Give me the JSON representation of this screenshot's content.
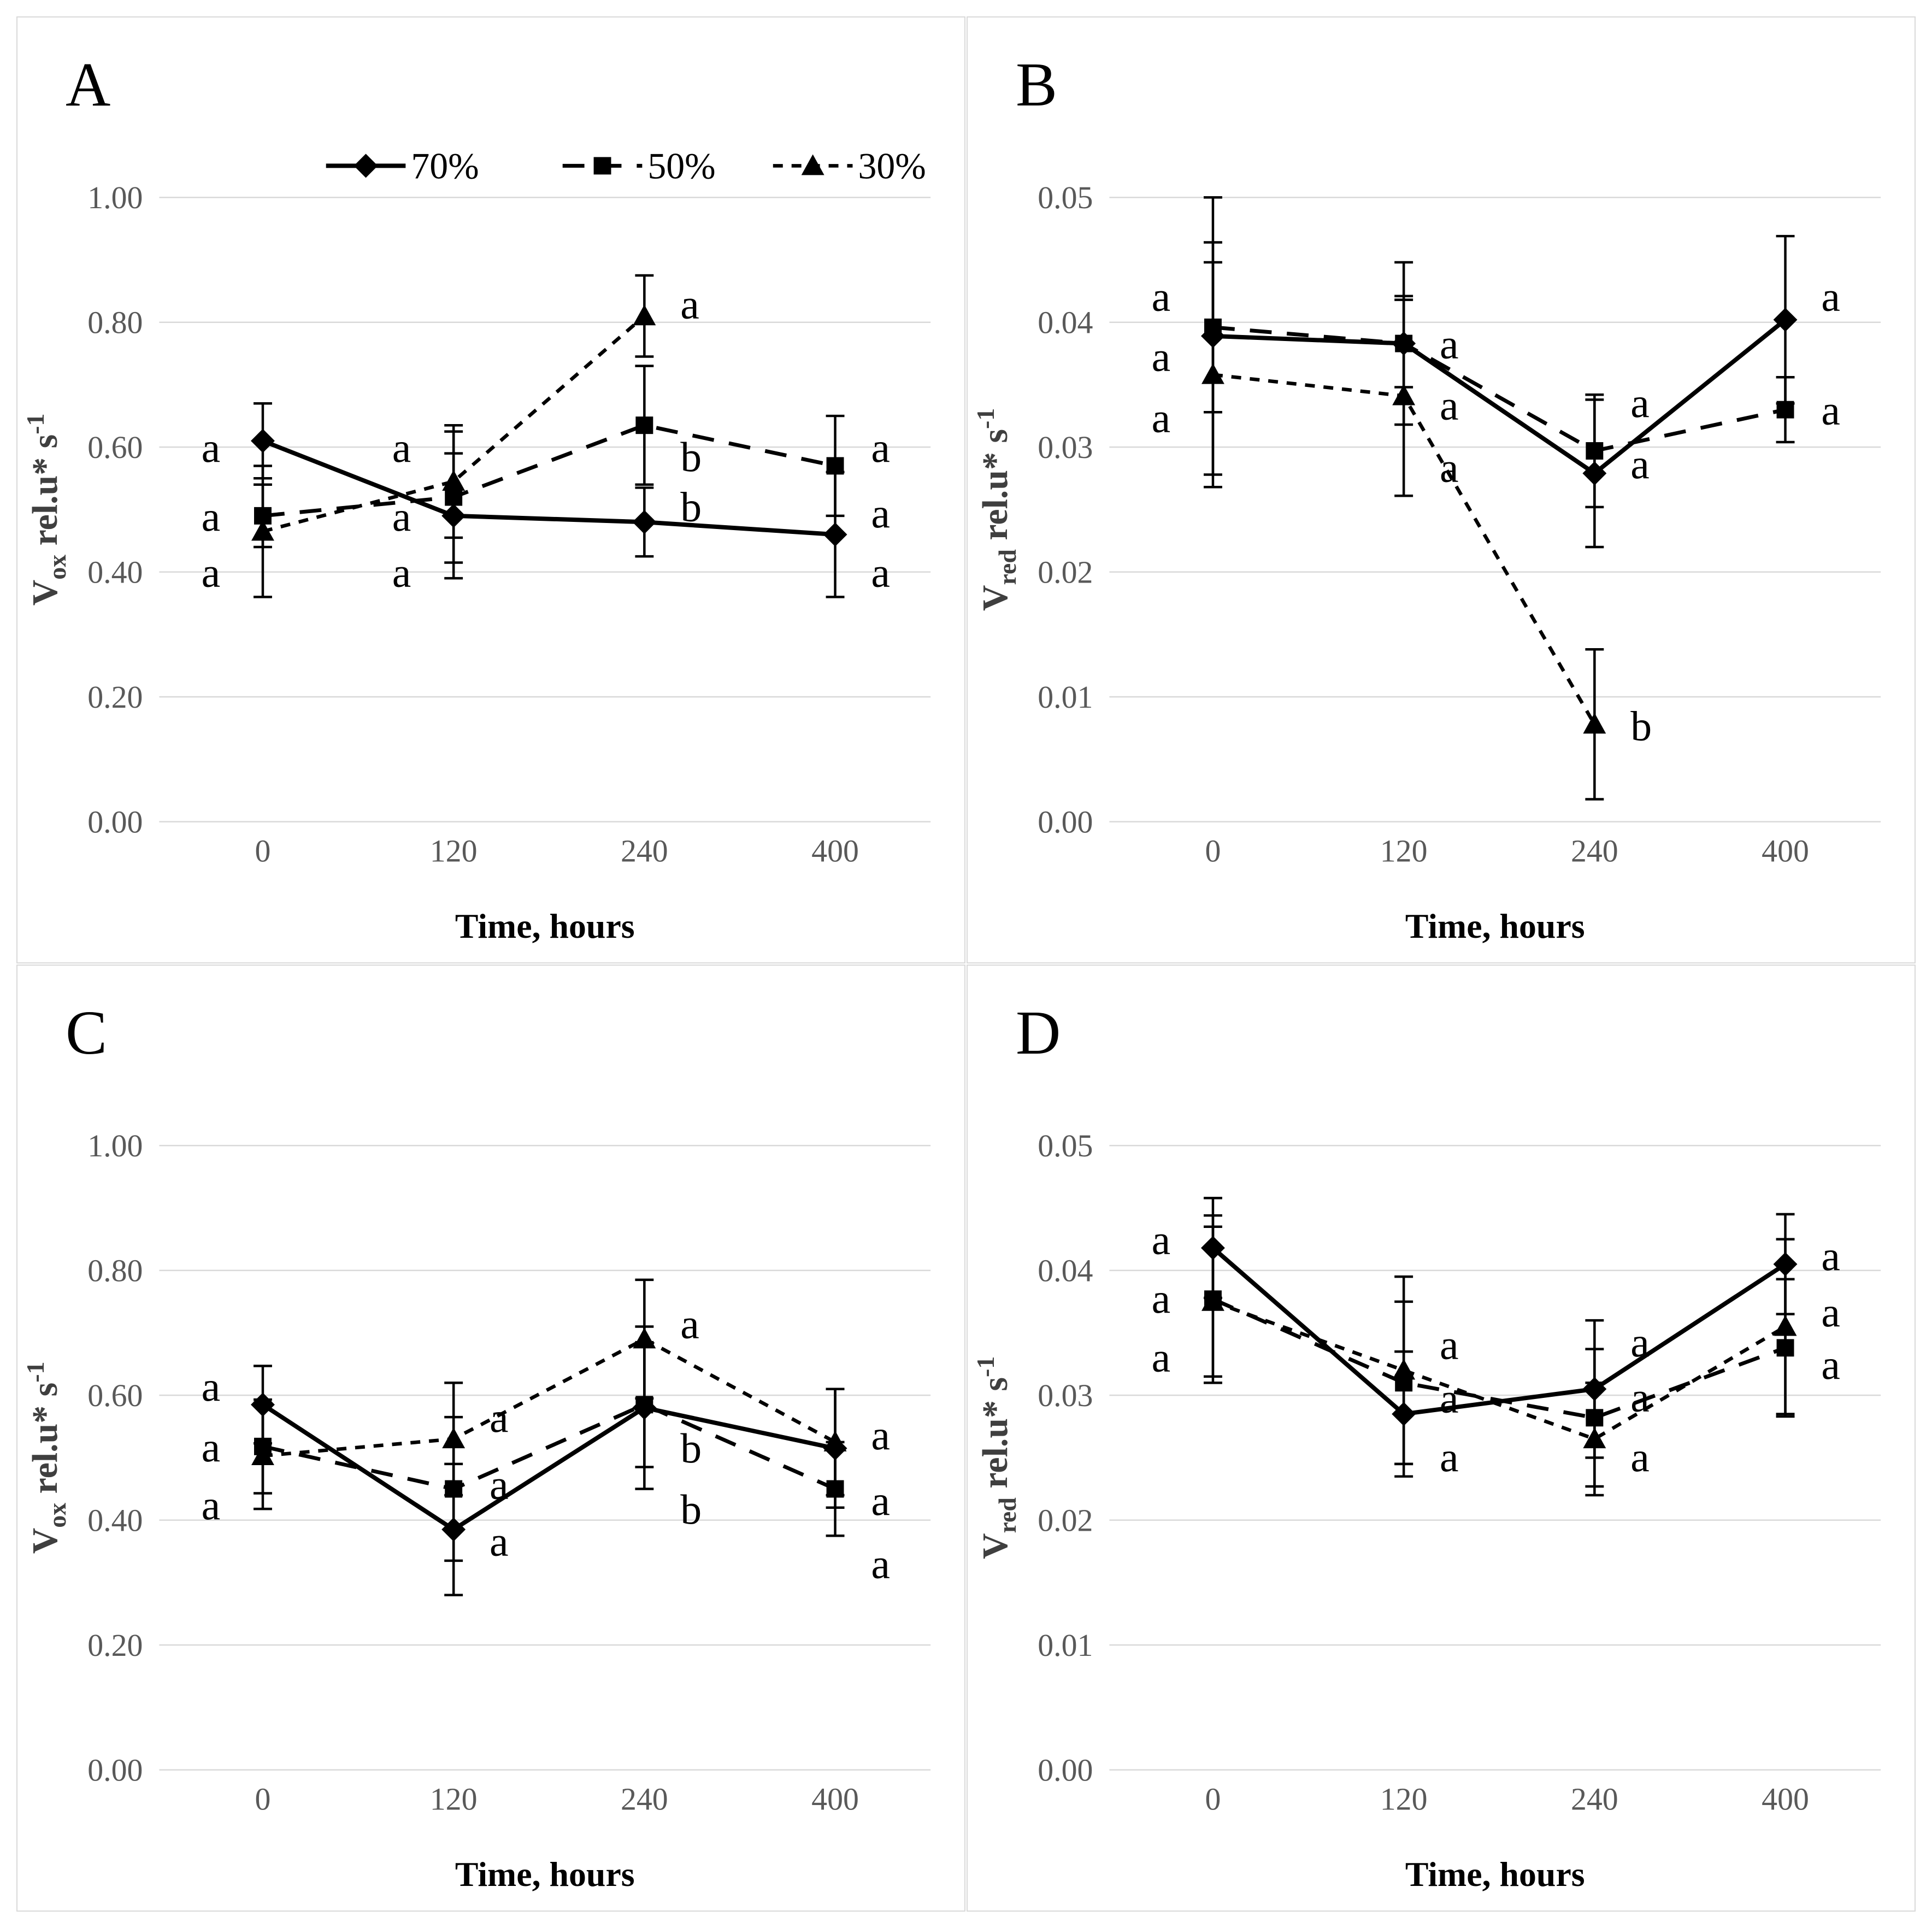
{
  "styles": {
    "background": "#ffffff",
    "panel_border_color": "#d9d9d9",
    "grid_color": "#d9d9d9",
    "series_color": "#000000",
    "tick_label_color": "#595959",
    "y_title_color": "#3f3f3f",
    "x_title_color": "#000000",
    "sig_letter_color": "#000000"
  },
  "chart_data": [
    {
      "type": "line",
      "panel_label": "A",
      "x": {
        "title": "Time, hours",
        "categories": [
          "0",
          "120",
          "240",
          "400"
        ]
      },
      "y": {
        "title": {
          "base": "V",
          "sub": "ox",
          "rest": " rel.u* s",
          "sup": "-1"
        },
        "max": 1.0,
        "tick_labels": [
          "1.00",
          "0.80",
          "0.60",
          "0.40",
          "0.20",
          "0.00"
        ]
      },
      "legend": {
        "visible": true
      },
      "series": [
        {
          "name": "70%",
          "marker": "diamond",
          "line_style": "solid",
          "values": [
            0.61,
            0.49,
            0.48,
            0.46
          ],
          "errors": [
            0.06,
            0.1,
            0.055,
            0.1
          ]
        },
        {
          "name": "50%",
          "marker": "square",
          "line_style": "long-dash",
          "values": [
            0.49,
            0.52,
            0.635,
            0.57
          ],
          "errors": [
            0.05,
            0.105,
            0.095,
            0.08
          ]
        },
        {
          "name": "30%",
          "marker": "triangle",
          "line_style": "short-dash",
          "values": [
            0.465,
            0.545,
            0.81,
            null
          ],
          "errors": [
            0.105,
            0.09,
            0.065,
            null
          ]
        }
      ],
      "sig_letters": [
        {
          "t": 0,
          "side": "left",
          "y": 0.6,
          "text": "a"
        },
        {
          "t": 0,
          "side": "left",
          "y": 0.49,
          "text": "a"
        },
        {
          "t": 0,
          "side": "left",
          "y": 0.4,
          "text": "a"
        },
        {
          "t": 1,
          "side": "left",
          "y": 0.6,
          "text": "a"
        },
        {
          "t": 1,
          "side": "left",
          "y": 0.49,
          "text": "a"
        },
        {
          "t": 1,
          "side": "left",
          "y": 0.4,
          "text": "a"
        },
        {
          "t": 2,
          "side": "right",
          "y": 0.83,
          "text": "a"
        },
        {
          "t": 2,
          "side": "right",
          "y": 0.585,
          "text": "b"
        },
        {
          "t": 2,
          "side": "right",
          "y": 0.505,
          "text": "b"
        },
        {
          "t": 3,
          "side": "right",
          "y": 0.6,
          "text": "a"
        },
        {
          "t": 3,
          "side": "right",
          "y": 0.495,
          "text": "a"
        },
        {
          "t": 3,
          "side": "right",
          "y": 0.4,
          "text": "a"
        }
      ]
    },
    {
      "type": "line",
      "panel_label": "B",
      "x": {
        "title": "Time, hours",
        "categories": [
          "0",
          "120",
          "240",
          "400"
        ]
      },
      "y": {
        "title": {
          "base": "V",
          "sub": "red",
          "rest": " rel.u* s",
          "sup": "-1"
        },
        "max": 0.05,
        "tick_labels": [
          "0.05",
          "0.04",
          "0.03",
          "0.02",
          "0.01",
          "0.00"
        ]
      },
      "legend": {
        "visible": false
      },
      "series": [
        {
          "name": "70%",
          "marker": "diamond",
          "line_style": "solid",
          "values": [
            0.0389,
            0.0383,
            0.0279,
            0.0402
          ],
          "errors": [
            0.0111,
            0.0035,
            0.0059,
            0.0067
          ]
        },
        {
          "name": "50%",
          "marker": "square",
          "line_style": "long-dash",
          "values": [
            0.0396,
            0.0383,
            0.0297,
            0.033
          ],
          "errors": [
            0.0068,
            0.0065,
            0.0045,
            0.0026
          ]
        },
        {
          "name": "30%",
          "marker": "triangle",
          "line_style": "short-dash",
          "values": [
            0.0358,
            0.0341,
            0.0078,
            null
          ],
          "errors": [
            0.009,
            0.008,
            0.006,
            null
          ]
        }
      ],
      "sig_letters": [
        {
          "t": 0,
          "side": "left",
          "y": 0.0421,
          "text": "a"
        },
        {
          "t": 0,
          "side": "left",
          "y": 0.0373,
          "text": "a"
        },
        {
          "t": 0,
          "side": "left",
          "y": 0.0324,
          "text": "a"
        },
        {
          "t": 1,
          "side": "right",
          "y": 0.0383,
          "text": "a"
        },
        {
          "t": 1,
          "side": "right",
          "y": 0.0334,
          "text": "a"
        },
        {
          "t": 1,
          "side": "right",
          "y": 0.0284,
          "text": "a"
        },
        {
          "t": 2,
          "side": "right",
          "y": 0.0336,
          "text": "a"
        },
        {
          "t": 2,
          "side": "right",
          "y": 0.0287,
          "text": "a"
        },
        {
          "t": 2,
          "side": "right",
          "y": 0.0077,
          "text": "b"
        },
        {
          "t": 3,
          "side": "right",
          "y": 0.0421,
          "text": "a"
        },
        {
          "t": 3,
          "side": "right",
          "y": 0.033,
          "text": "a"
        }
      ]
    },
    {
      "type": "line",
      "panel_label": "C",
      "x": {
        "title": "Time, hours",
        "categories": [
          "0",
          "120",
          "240",
          "400"
        ]
      },
      "y": {
        "title": {
          "base": "V",
          "sub": "ox",
          "rest": " rel.u* s",
          "sup": "-1"
        },
        "max": 1.0,
        "tick_labels": [
          "1.00",
          "0.80",
          "0.60",
          "0.40",
          "0.20",
          "0.00"
        ]
      },
      "legend": {
        "visible": false
      },
      "series": [
        {
          "name": "70%",
          "marker": "diamond",
          "line_style": "solid",
          "values": [
            0.585,
            0.385,
            0.58,
            0.515
          ],
          "errors": [
            0.062,
            0.105,
            0.13,
            0.095
          ]
        },
        {
          "name": "50%",
          "marker": "square",
          "line_style": "long-dash",
          "values": [
            0.518,
            0.45,
            0.585,
            0.45
          ],
          "errors": [
            0.075,
            0.115,
            0.1,
            0.075
          ]
        },
        {
          "name": "30%",
          "marker": "triangle",
          "line_style": "short-dash",
          "values": [
            0.503,
            0.53,
            0.69,
            0.525
          ],
          "errors": [
            0.085,
            0.09,
            0.095,
            0.085
          ]
        }
      ],
      "sig_letters": [
        {
          "t": 0,
          "side": "left",
          "y": 0.615,
          "text": "a"
        },
        {
          "t": 0,
          "side": "left",
          "y": 0.518,
          "text": "a"
        },
        {
          "t": 0,
          "side": "left",
          "y": 0.425,
          "text": "a"
        },
        {
          "t": 1,
          "side": "right",
          "y": 0.565,
          "text": "a"
        },
        {
          "t": 1,
          "side": "right",
          "y": 0.458,
          "text": "a"
        },
        {
          "t": 1,
          "side": "right",
          "y": 0.367,
          "text": "a"
        },
        {
          "t": 2,
          "side": "right",
          "y": 0.715,
          "text": "a"
        },
        {
          "t": 2,
          "side": "right",
          "y": 0.516,
          "text": "b"
        },
        {
          "t": 2,
          "side": "right",
          "y": 0.418,
          "text": "b"
        },
        {
          "t": 3,
          "side": "right",
          "y": 0.537,
          "text": "a"
        },
        {
          "t": 3,
          "side": "right",
          "y": 0.432,
          "text": "a"
        },
        {
          "t": 3,
          "side": "right",
          "y": 0.331,
          "text": "a"
        }
      ]
    },
    {
      "type": "line",
      "panel_label": "D",
      "x": {
        "title": "Time, hours",
        "categories": [
          "0",
          "120",
          "240",
          "400"
        ]
      },
      "y": {
        "title": {
          "base": "V",
          "sub": "red",
          "rest": " rel.u* s",
          "sup": "-1"
        },
        "max": 0.05,
        "tick_labels": [
          "0.05",
          "0.04",
          "0.03",
          "0.02",
          "0.01",
          "0.00"
        ]
      },
      "legend": {
        "visible": false
      },
      "series": [
        {
          "name": "70%",
          "marker": "diamond",
          "line_style": "solid",
          "values": [
            0.0418,
            0.0285,
            0.0305,
            0.0405
          ],
          "errors": [
            0.004,
            0.005,
            0.0055,
            0.004
          ]
        },
        {
          "name": "50%",
          "marker": "square",
          "line_style": "long-dash",
          "values": [
            0.0377,
            0.031,
            0.0282,
            0.0338
          ],
          "errors": [
            0.0067,
            0.0065,
            0.0055,
            0.0055
          ]
        },
        {
          "name": "30%",
          "marker": "triangle",
          "line_style": "short-dash",
          "values": [
            0.0375,
            0.032,
            0.0265,
            0.0355
          ],
          "errors": [
            0.006,
            0.0075,
            0.0045,
            0.007
          ]
        }
      ],
      "sig_letters": [
        {
          "t": 0,
          "side": "left",
          "y": 0.0425,
          "text": "a"
        },
        {
          "t": 0,
          "side": "left",
          "y": 0.0378,
          "text": "a"
        },
        {
          "t": 0,
          "side": "left",
          "y": 0.0331,
          "text": "a"
        },
        {
          "t": 1,
          "side": "right",
          "y": 0.0341,
          "text": "a"
        },
        {
          "t": 1,
          "side": "right",
          "y": 0.0298,
          "text": "a"
        },
        {
          "t": 1,
          "side": "right",
          "y": 0.0251,
          "text": "a"
        },
        {
          "t": 2,
          "side": "right",
          "y": 0.0343,
          "text": "a"
        },
        {
          "t": 2,
          "side": "right",
          "y": 0.0299,
          "text": "a"
        },
        {
          "t": 2,
          "side": "right",
          "y": 0.0251,
          "text": "a"
        },
        {
          "t": 3,
          "side": "right",
          "y": 0.0412,
          "text": "a"
        },
        {
          "t": 3,
          "side": "right",
          "y": 0.0367,
          "text": "a"
        },
        {
          "t": 3,
          "side": "right",
          "y": 0.0325,
          "text": "a"
        }
      ]
    }
  ]
}
